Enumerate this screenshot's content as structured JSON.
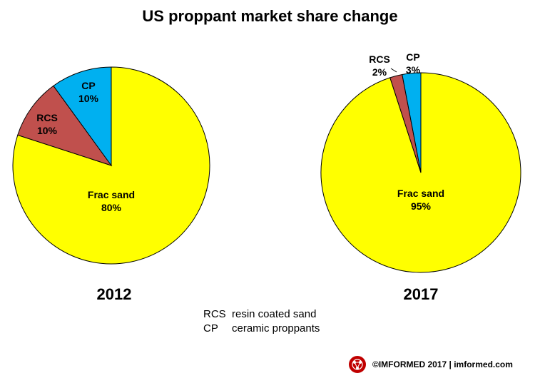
{
  "chart_data": [
    {
      "type": "pie",
      "title": "US proppant market share change",
      "caption": "2012",
      "slices": [
        {
          "label": "Frac sand",
          "value": 80,
          "value_label": "80%",
          "color": "#ffff00"
        },
        {
          "label": "RCS",
          "value": 10,
          "value_label": "10%",
          "color": "#c0504d"
        },
        {
          "label": "CP",
          "value": 10,
          "value_label": "10%",
          "color": "#00b0f0"
        }
      ]
    },
    {
      "type": "pie",
      "title": "US proppant market share change",
      "caption": "2017",
      "slices": [
        {
          "label": "Frac sand",
          "value": 95,
          "value_label": "95%",
          "color": "#ffff00"
        },
        {
          "label": "RCS",
          "value": 2,
          "value_label": "2%",
          "color": "#c0504d"
        },
        {
          "label": "CP",
          "value": 3,
          "value_label": "3%",
          "color": "#00b0f0"
        }
      ]
    }
  ],
  "title": "US proppant market share change",
  "legend": [
    {
      "abbr": "RCS",
      "text": "resin coated sand"
    },
    {
      "abbr": "CP",
      "text": "ceramic proppants"
    }
  ],
  "footer": {
    "text": "©IMFORMED  2017  | imformed.com",
    "logo_icon": "imformed-logo-icon",
    "logo_color": "#c00000"
  }
}
